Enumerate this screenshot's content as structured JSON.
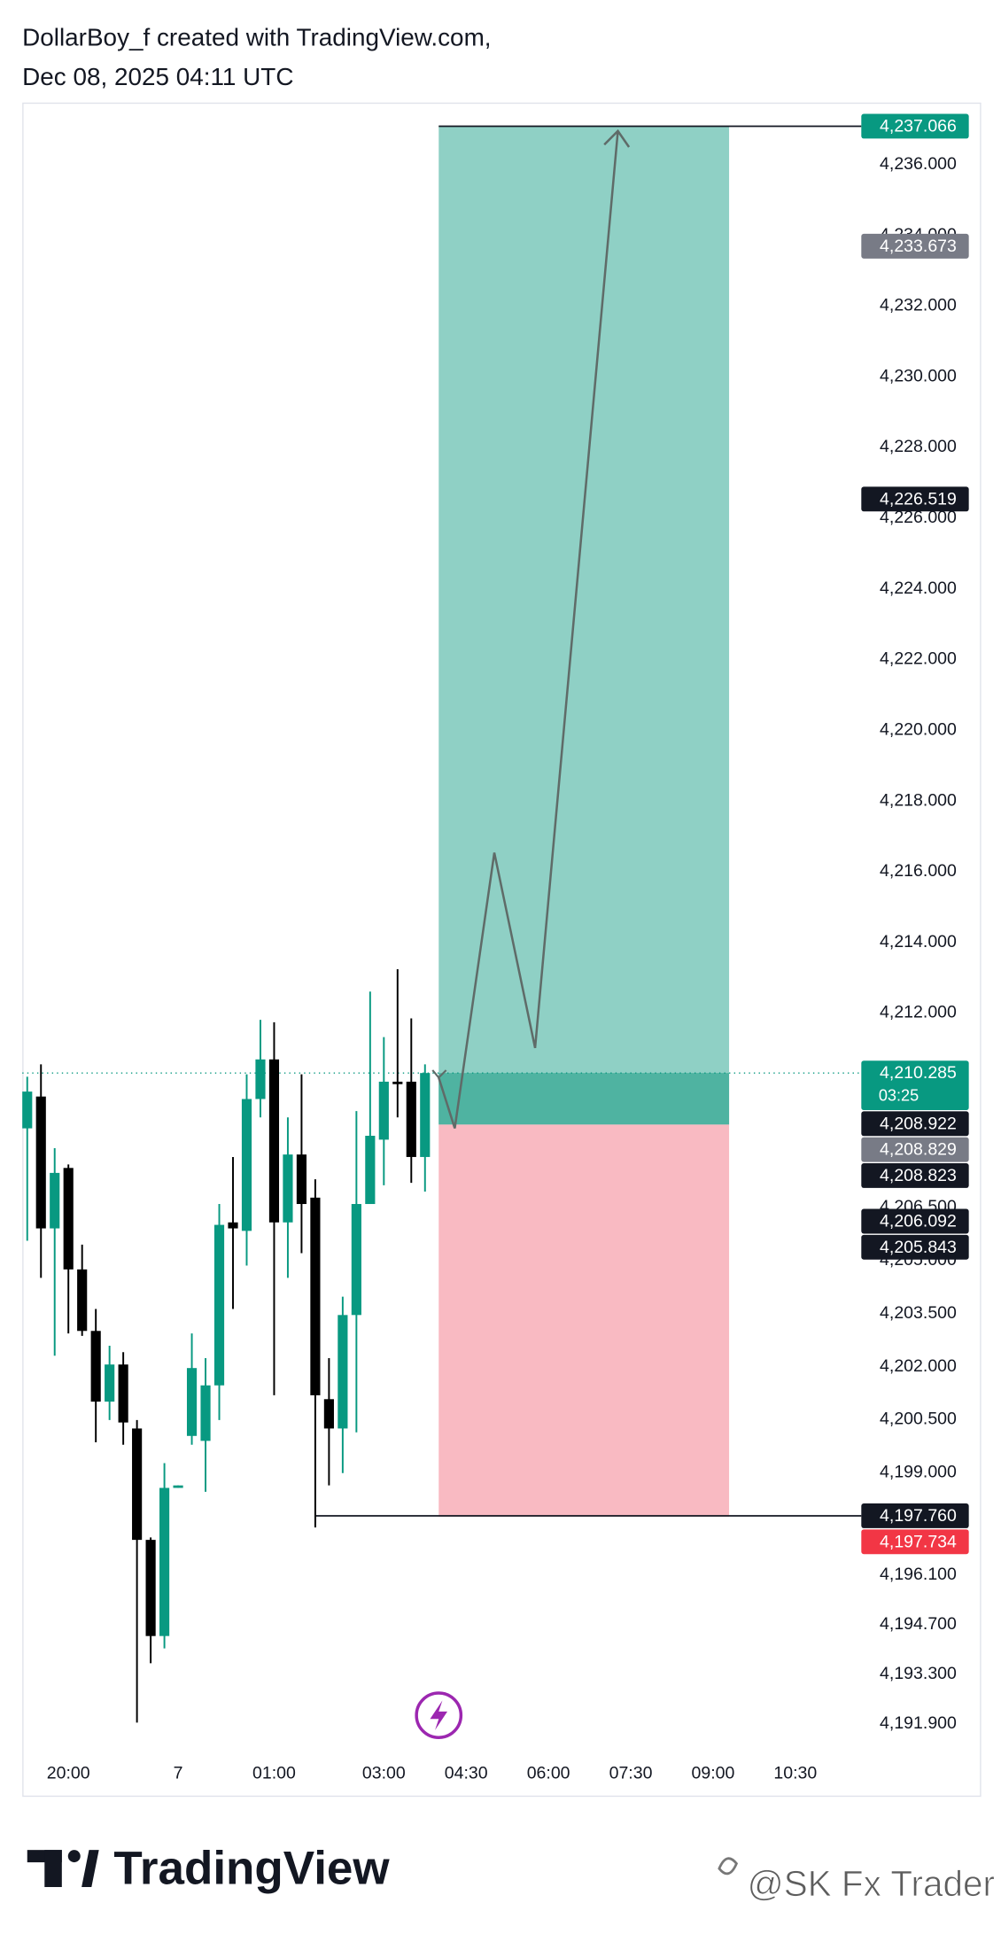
{
  "header": {
    "line1": "DollarBoy_f created with TradingView.com,",
    "line2": "Dec 08, 2025 04:11 UTC"
  },
  "chart_data": {
    "type": "candlestick",
    "categories": [
      null,
      null,
      null,
      "20:00",
      null,
      null,
      null,
      null,
      null,
      null,
      null,
      "7",
      null,
      null,
      null,
      null,
      null,
      null,
      "01:00",
      null,
      null,
      null,
      null,
      null,
      null,
      null,
      "03:00",
      null,
      null,
      null,
      null,
      null,
      "04:30",
      null,
      null,
      null,
      null,
      null,
      "06:00",
      null,
      null,
      null,
      null,
      null,
      "07:30",
      null,
      null,
      null,
      null,
      null,
      "09:00",
      null,
      null,
      null,
      null,
      null,
      "10:30",
      null,
      null,
      null,
      null
    ],
    "open": [
      4208.72,
      4209.62,
      4205.89,
      4207.6,
      4204.73,
      4202.99,
      4200.99,
      4202.04,
      4200.23,
      4197.08,
      4194.36,
      4198.55,
      4200.02,
      4199.88,
      4201.45,
      4206.06,
      4205.82,
      4209.55,
      4210.67,
      4206.06,
      4207.98,
      4206.76,
      4201.06,
      4200.23,
      4203.44,
      4206.58,
      4208.4,
      4210.04,
      4210.04,
      4207.91,
      null,
      null,
      null,
      null,
      null,
      null,
      null,
      null,
      null,
      null,
      null,
      null,
      null,
      null,
      null,
      null,
      null,
      null,
      null,
      null,
      null,
      null,
      null,
      null,
      null,
      null,
      null,
      null,
      null,
      null,
      null
    ],
    "high": [
      4210.18,
      4210.53,
      4208.16,
      4207.7,
      4205.43,
      4203.61,
      4202.57,
      4202.39,
      4200.47,
      4197.15,
      4199.25,
      4198.62,
      4202.92,
      4202.22,
      4206.58,
      4207.91,
      4210.25,
      4211.79,
      4211.72,
      4209.03,
      4210.25,
      4207.28,
      4202.22,
      4203.96,
      4209.21,
      4212.59,
      4211.3,
      4213.22,
      4211.83,
      4210.53,
      null,
      null,
      null,
      null,
      null,
      null,
      null,
      null,
      null,
      null,
      null,
      null,
      null,
      null,
      null,
      null,
      null,
      null,
      null,
      null,
      null,
      null,
      null,
      null,
      null,
      null,
      null,
      null,
      null,
      null,
      null
    ],
    "low": [
      4205.54,
      4204.49,
      4202.29,
      4202.92,
      4202.85,
      4199.84,
      4200.47,
      4199.77,
      4191.91,
      4193.59,
      4194.01,
      4198.55,
      4199.77,
      4198.44,
      4200.47,
      4203.61,
      4204.84,
      4209.03,
      4201.17,
      4204.49,
      4205.19,
      4197.43,
      4198.62,
      4198.97,
      4200.12,
      4206.58,
      4207.11,
      4209.03,
      4207.18,
      4206.93,
      null,
      null,
      null,
      null,
      null,
      null,
      null,
      null,
      null,
      null,
      null,
      null,
      null,
      null,
      null,
      null,
      null,
      null,
      null,
      null,
      null,
      null,
      null,
      null,
      null,
      null,
      null,
      null,
      null,
      null,
      null
    ],
    "close": [
      4209.76,
      4205.89,
      4207.46,
      4204.73,
      4202.99,
      4200.99,
      4202.04,
      4200.4,
      4197.08,
      4194.36,
      4198.55,
      4198.62,
      4201.94,
      4201.45,
      4205.99,
      4205.89,
      4209.55,
      4210.67,
      4206.06,
      4207.98,
      4206.58,
      4201.17,
      4200.23,
      4203.44,
      4206.58,
      4208.51,
      4210.04,
      4209.97,
      4207.91,
      4210.285,
      null,
      null,
      null,
      null,
      null,
      null,
      null,
      null,
      null,
      null,
      null,
      null,
      null,
      null,
      null,
      null,
      null,
      null,
      null,
      null,
      null,
      null,
      null,
      null,
      null,
      null,
      null,
      null,
      null,
      null,
      null
    ],
    "up_color": "#089981",
    "down_color": "#000000",
    "ylim": [
      4191.0,
      4237.7
    ],
    "yticks": [
      {
        "value": 4236,
        "label": "4,236.000"
      },
      {
        "value": 4234,
        "label": "4,234.000"
      },
      {
        "value": 4232,
        "label": "4,232.000"
      },
      {
        "value": 4230,
        "label": "4,230.000"
      },
      {
        "value": 4228,
        "label": "4,228.000"
      },
      {
        "value": 4226,
        "label": "4,226.000"
      },
      {
        "value": 4224,
        "label": "4,224.000"
      },
      {
        "value": 4222,
        "label": "4,222.000"
      },
      {
        "value": 4220,
        "label": "4,220.000"
      },
      {
        "value": 4218,
        "label": "4,218.000"
      },
      {
        "value": 4216,
        "label": "4,216.000"
      },
      {
        "value": 4214,
        "label": "4,214.000"
      },
      {
        "value": 4212,
        "label": "4,212.000"
      },
      {
        "value": 4206.5,
        "label": "4,206.500"
      },
      {
        "value": 4205,
        "label": "4,205.000"
      },
      {
        "value": 4203.5,
        "label": "4,203.500"
      },
      {
        "value": 4202,
        "label": "4,202.000"
      },
      {
        "value": 4200.5,
        "label": "4,200.500"
      },
      {
        "value": 4199,
        "label": "4,199.000"
      },
      {
        "value": 4196.1,
        "label": "4,196.100"
      },
      {
        "value": 4194.7,
        "label": "4,194.700"
      },
      {
        "value": 4193.3,
        "label": "4,193.300"
      },
      {
        "value": 4191.9,
        "label": "4,191.900"
      }
    ],
    "position": {
      "target": {
        "value": 4237.066,
        "label": "4,237.066",
        "color": "#089981"
      },
      "entry": {
        "value": 4208.829,
        "label": "4,208.829",
        "color": "#787b86"
      },
      "stop": {
        "value": 4197.734,
        "label": "4,197.734",
        "color": "#f23645"
      },
      "profit_color": "#8fd0c5",
      "loss_color": "#f9bac2",
      "open_profit_color": "#4fb3a1"
    },
    "current_price": {
      "value": 4210.285,
      "label": "4,210.285",
      "countdown": "03:25",
      "color": "#089981"
    },
    "price_labels": [
      {
        "value": 4233.673,
        "label": "4,233.673",
        "color": "#787b86"
      },
      {
        "value": 4226.519,
        "label": "4,226.519",
        "color": "#131722"
      },
      {
        "value": 4208.922,
        "label": "4,208.922",
        "color": "#131722"
      },
      {
        "value": 4208.823,
        "label": "4,208.823",
        "color": "#131722"
      },
      {
        "value": 4206.092,
        "label": "4,206.092",
        "color": "#131722"
      },
      {
        "value": 4205.843,
        "label": "4,205.843",
        "color": "#131722"
      },
      {
        "value": 4197.76,
        "label": "4,197.760",
        "color": "#131722"
      }
    ]
  },
  "footer": {
    "brand": "TradingView",
    "watermark": "@SK Fx Trader"
  }
}
